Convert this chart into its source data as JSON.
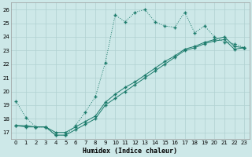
{
  "xlabel": "Humidex (Indice chaleur)",
  "bg_color": "#cde8e8",
  "grid_color": "#b0d0d0",
  "line_color": "#1a7a6a",
  "xlim": [
    -0.5,
    23.5
  ],
  "ylim": [
    16.5,
    26.5
  ],
  "xticks": [
    0,
    1,
    2,
    3,
    4,
    5,
    6,
    7,
    8,
    9,
    10,
    11,
    12,
    13,
    14,
    15,
    16,
    17,
    18,
    19,
    20,
    21,
    22,
    23
  ],
  "yticks": [
    17,
    18,
    19,
    20,
    21,
    22,
    23,
    24,
    25,
    26
  ],
  "line1_x": [
    0,
    1,
    2,
    3,
    4,
    5,
    6,
    7,
    8,
    9,
    10,
    11,
    12,
    13,
    14,
    15,
    16,
    17,
    18,
    19,
    20,
    21,
    22,
    23
  ],
  "line1_y": [
    19.3,
    18.1,
    17.4,
    17.4,
    16.8,
    16.8,
    17.5,
    18.5,
    19.6,
    22.1,
    25.6,
    25.1,
    25.8,
    26.0,
    25.1,
    24.8,
    24.7,
    25.8,
    24.3,
    24.8,
    24.0,
    23.6,
    23.5,
    23.2
  ],
  "line2_x": [
    0,
    1,
    2,
    3,
    4,
    5,
    6,
    7,
    8,
    9,
    10,
    11,
    12,
    13,
    14,
    15,
    16,
    17,
    18,
    19,
    20,
    21,
    22,
    23
  ],
  "line2_y": [
    17.5,
    17.5,
    17.4,
    17.4,
    17.0,
    17.0,
    17.4,
    17.8,
    18.2,
    19.2,
    19.8,
    20.3,
    20.7,
    21.2,
    21.7,
    22.2,
    22.6,
    23.1,
    23.3,
    23.6,
    23.8,
    24.0,
    23.3,
    23.2
  ],
  "line3_x": [
    0,
    1,
    2,
    3,
    4,
    5,
    6,
    7,
    8,
    9,
    10,
    11,
    12,
    13,
    14,
    15,
    16,
    17,
    18,
    19,
    20,
    21,
    22,
    23
  ],
  "line3_y": [
    17.5,
    17.4,
    17.4,
    17.4,
    16.8,
    16.8,
    17.2,
    17.6,
    18.0,
    19.0,
    19.5,
    20.0,
    20.5,
    21.0,
    21.5,
    22.0,
    22.5,
    23.0,
    23.2,
    23.5,
    23.7,
    23.8,
    23.1,
    23.2
  ]
}
